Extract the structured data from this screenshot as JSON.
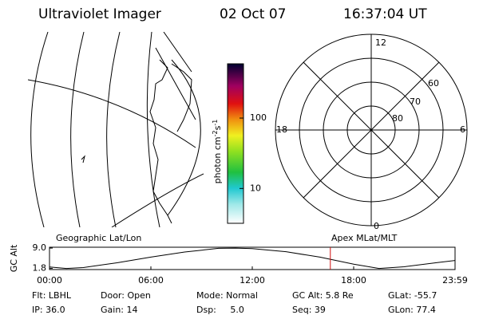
{
  "header": {
    "instrument": "Ultraviolet Imager",
    "date": "02 Oct 07",
    "time": "16:37:04 UT"
  },
  "colorbar": {
    "label": "photon cm",
    "label_sup1": "-2",
    "label_mid": "s",
    "label_sup2": "-1",
    "log": true,
    "range": [
      3.2,
      590
    ],
    "ticks": [
      100,
      10
    ]
  },
  "polar": {
    "mlt_labels": [
      "12",
      "6",
      "0",
      "18"
    ],
    "lat_labels": [
      "60",
      "70",
      "80"
    ]
  },
  "alt_plot": {
    "left_title": "Geographic Lat/Lon",
    "right_title": "Apex MLat/MLT",
    "ylabel": "GC Alt",
    "x": [
      0,
      1,
      2,
      4,
      6,
      8,
      10,
      11,
      12,
      14,
      16,
      18,
      19.5,
      21,
      23,
      24
    ],
    "values": [
      2.3,
      1.8,
      2.1,
      3.8,
      5.8,
      7.6,
      8.9,
      9.0,
      8.8,
      7.7,
      5.8,
      3.3,
      1.8,
      2.4,
      3.9,
      4.6
    ],
    "xlim": [
      0,
      24
    ],
    "ylim": [
      1.4,
      9.3
    ],
    "xticks": [
      {
        "value": 0,
        "label": "00:00"
      },
      {
        "value": 6,
        "label": "06:00"
      },
      {
        "value": 12,
        "label": "12:00"
      },
      {
        "value": 18,
        "label": "18:00"
      },
      {
        "value": 24,
        "label": "23:59"
      }
    ],
    "yticks": [
      {
        "value": 9.0,
        "label": "9.0"
      },
      {
        "value": 1.8,
        "label": "1.8"
      }
    ],
    "marker_x": 16.62,
    "marker_color": "#d01010"
  },
  "status": {
    "row1": [
      "Flt: LBHL",
      "Door: Open",
      "Mode: Normal",
      "GC Alt: 5.8 Re",
      "GLat: -55.7"
    ],
    "row2": [
      "IP: 36.0",
      "Gain: 14",
      "Dsp:     5.0",
      "Seq: 39",
      "GLon: 77.4"
    ]
  }
}
